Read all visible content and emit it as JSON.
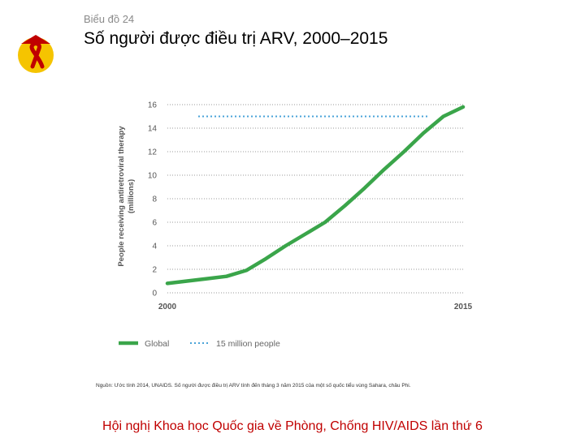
{
  "slide": {
    "kicker": "Biểu đồ 24",
    "title": "Số người được điều trị ARV, 2000–2015",
    "source": "Nguồn: Ước tính 2014, UNAIDS. Số người được điều trị ARV tính đến tháng 3 năm 2015 của một số quốc tiểu vùng Sahara, châu Phi.",
    "footer": "Hội nghị Khoa học Quốc gia về Phòng, Chống HIV/AIDS lần thứ 6",
    "colors": {
      "accent": "#c00000",
      "series": "#3aa54a",
      "target": "#4aa3d8",
      "logo_bg": "#f5c400"
    }
  },
  "chart_data": {
    "type": "line",
    "title": "",
    "xlabel": "",
    "ylabel_lines": [
      "People receiving antiretroviral therapy",
      "(millions)"
    ],
    "xlim": [
      2000,
      2015
    ],
    "ylim": [
      0,
      16
    ],
    "yticks": [
      "0",
      "2",
      "4",
      "6",
      "8",
      "10",
      "12",
      "14",
      "16"
    ],
    "xticks": [
      "2000",
      "2015"
    ],
    "grid": true,
    "series": [
      {
        "name": "Global",
        "x": [
          2000,
          2001,
          2002,
          2003,
          2004,
          2005,
          2006,
          2007,
          2008,
          2009,
          2010,
          2011,
          2012,
          2013,
          2014,
          2015
        ],
        "values": [
          0.8,
          1.0,
          1.2,
          1.4,
          1.9,
          2.9,
          4.0,
          5.0,
          6.0,
          7.4,
          8.9,
          10.5,
          12.0,
          13.6,
          15.0,
          15.8
        ]
      }
    ],
    "reference": {
      "name": "15 million people",
      "value": 15
    },
    "legend": {
      "position": "bottom-left",
      "entries": [
        "Global",
        "15 million people"
      ]
    }
  }
}
